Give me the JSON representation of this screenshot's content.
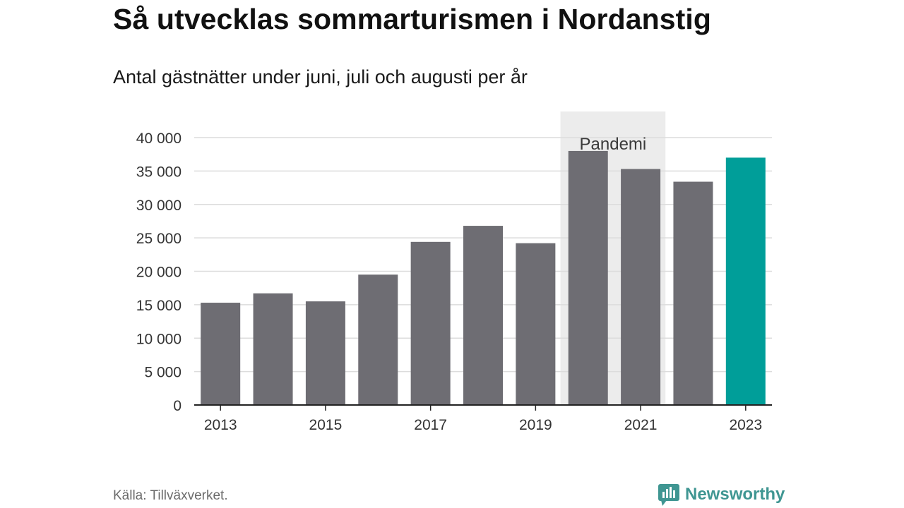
{
  "title": "Så utvecklas sommarturismen i Nordanstig",
  "subtitle": "Antal gästnätter under juni, juli och augusti per år",
  "source": "Källa: Tillväxverket.",
  "brand": "Newsworthy",
  "colors": {
    "bar": "#6e6d73",
    "highlight": "#009e99",
    "pandemic_band": "#ececec",
    "grid": "#dcdcdc",
    "axis": "#222222",
    "brand": "#3f9692"
  },
  "chart_data": {
    "type": "bar",
    "categories": [
      "2013",
      "2014",
      "2015",
      "2016",
      "2017",
      "2018",
      "2019",
      "2020",
      "2021",
      "2022",
      "2023"
    ],
    "values": [
      15300,
      16700,
      15500,
      19500,
      24400,
      26800,
      24200,
      38000,
      35300,
      33400,
      37000
    ],
    "highlight_category": "2023",
    "ylim": [
      0,
      40000
    ],
    "yticks": [
      0,
      5000,
      10000,
      15000,
      20000,
      25000,
      30000,
      35000,
      40000
    ],
    "ytick_labels": [
      "0",
      "5 000",
      "10 000",
      "15 000",
      "20 000",
      "25 000",
      "30 000",
      "35 000",
      "40 000"
    ],
    "xtick_labels": [
      "2013",
      "2015",
      "2017",
      "2019",
      "2021",
      "2023"
    ],
    "grid": true,
    "annotation": {
      "label": "Pandemi",
      "from": "2020",
      "to": "2021"
    }
  }
}
